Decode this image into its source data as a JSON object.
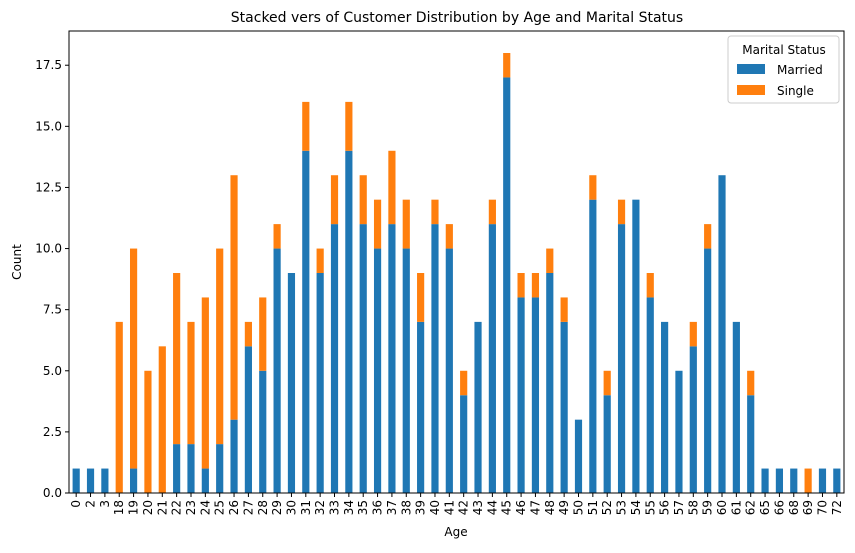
{
  "chart_data": {
    "type": "bar",
    "stacked": true,
    "title": "Stacked vers of Customer Distribution by Age and Marital Status",
    "xlabel": "Age",
    "ylabel": "Count",
    "ylim": [
      0,
      18.9
    ],
    "yticks": [
      "0.0",
      "2.5",
      "5.0",
      "7.5",
      "10.0",
      "12.5",
      "15.0",
      "17.5"
    ],
    "grid": false,
    "legend": {
      "title": "Marital Status",
      "placement": "top-right"
    },
    "categories": [
      "0",
      "2",
      "3",
      "18",
      "19",
      "20",
      "21",
      "22",
      "23",
      "24",
      "25",
      "26",
      "27",
      "28",
      "29",
      "30",
      "31",
      "32",
      "33",
      "34",
      "35",
      "36",
      "37",
      "38",
      "39",
      "40",
      "41",
      "42",
      "43",
      "44",
      "45",
      "46",
      "47",
      "48",
      "49",
      "50",
      "51",
      "52",
      "53",
      "54",
      "55",
      "56",
      "57",
      "58",
      "59",
      "60",
      "61",
      "62",
      "65",
      "66",
      "68",
      "69",
      "70",
      "72"
    ],
    "series": [
      {
        "name": "Married",
        "color": "#1f77b4",
        "values": [
          1,
          1,
          1,
          0,
          1,
          0,
          0,
          2,
          2,
          1,
          2,
          3,
          6,
          5,
          10,
          9,
          14,
          9,
          11,
          14,
          11,
          10,
          11,
          10,
          7,
          11,
          10,
          4,
          7,
          11,
          17,
          8,
          8,
          9,
          7,
          3,
          12,
          4,
          11,
          12,
          8,
          7,
          5,
          6,
          10,
          13,
          7,
          4,
          1,
          1,
          1,
          0,
          1,
          1
        ]
      },
      {
        "name": "Single",
        "color": "#ff7f0e",
        "values": [
          0,
          0,
          0,
          7,
          9,
          5,
          6,
          7,
          5,
          7,
          8,
          10,
          1,
          3,
          1,
          0,
          2,
          1,
          2,
          2,
          2,
          2,
          3,
          2,
          2,
          1,
          1,
          1,
          0,
          1,
          1,
          1,
          1,
          1,
          1,
          0,
          1,
          1,
          1,
          0,
          1,
          0,
          0,
          1,
          1,
          0,
          0,
          1,
          0,
          0,
          0,
          1,
          0,
          0
        ]
      }
    ]
  }
}
